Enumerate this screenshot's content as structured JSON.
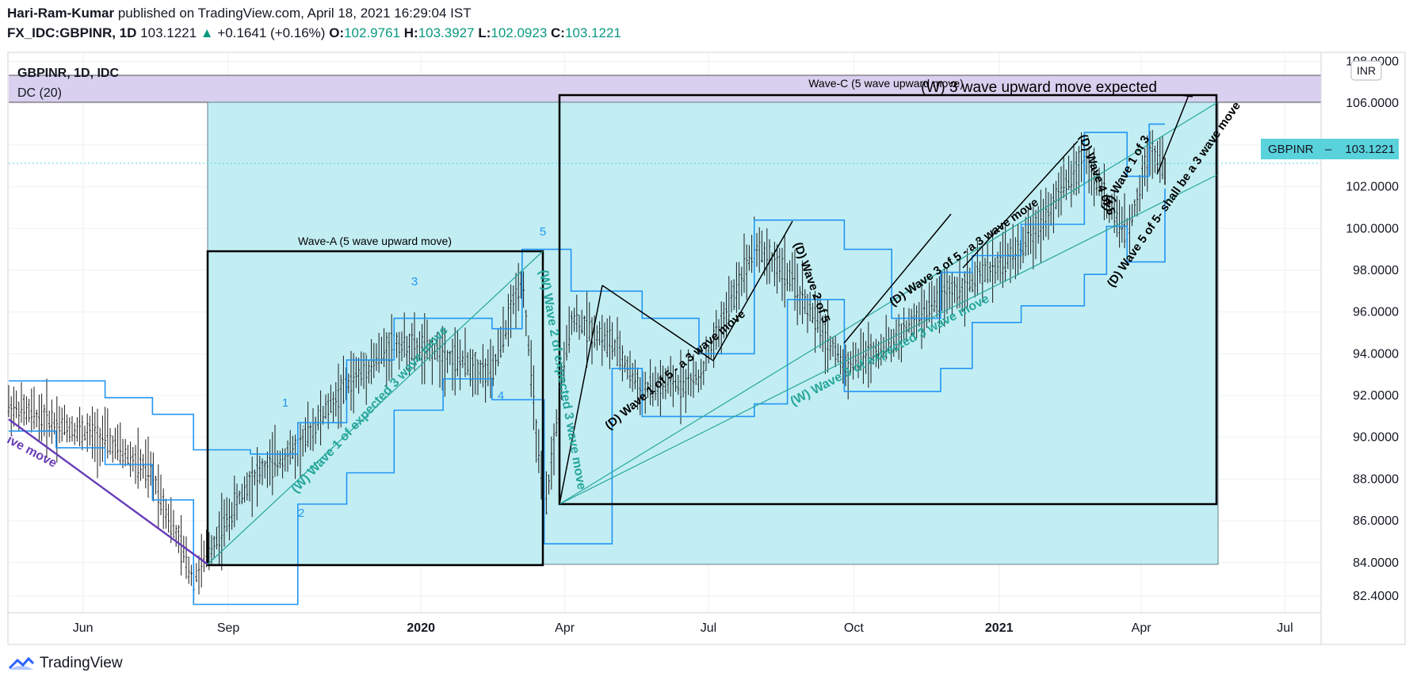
{
  "header": {
    "author": "Hari-Ram-Kumar",
    "published_text": "published on TradingView.com, April 18, 2021 16:29:04 IST",
    "symbol": "FX_IDC:GBPINR, 1D",
    "last_price": "103.1221",
    "change_arrow": "▲",
    "change": "+0.1641 (+0.16%)",
    "o_label": "O:",
    "o_value": "102.9761",
    "h_label": "H:",
    "h_value": "103.3927",
    "l_label": "L:",
    "l_value": "102.0923",
    "c_label": "C:",
    "c_value": "103.1221"
  },
  "legend": {
    "series": "GBPINR, 1D, IDC",
    "indicator": "DC (20)"
  },
  "currency": "INR",
  "price_tag": {
    "symbol": "GBPINR",
    "value": "103.1221"
  },
  "footer": {
    "brand": "TradingView"
  },
  "colors": {
    "box_fill": "#c2eef3",
    "channel": "#2196f3",
    "dc_band": "#d8d0ee",
    "trend_teal": "#26a69a",
    "trend_purple": "#673ab7",
    "tag": "#5ad2dc"
  },
  "annotations": [
    {
      "key": "wave_a",
      "text": "Wave-A (5 wave upward move)"
    },
    {
      "key": "wave_c",
      "text": "Wave-C (5 wave upward move)"
    },
    {
      "key": "w_expected",
      "text": "(W) 3 wave upward move expected"
    },
    {
      "key": "n1",
      "text": "1"
    },
    {
      "key": "n2",
      "text": "2"
    },
    {
      "key": "n3",
      "text": "3"
    },
    {
      "key": "n4",
      "text": "4"
    },
    {
      "key": "n5",
      "text": "5"
    },
    {
      "key": "w1",
      "text": "(W) Wave 1 of expected 3 wave move"
    },
    {
      "key": "w2",
      "text": "(W) Wave 2 of expected 3 wave move"
    },
    {
      "key": "w3",
      "text": "(W) Wave 3 of expected 3 wave move"
    },
    {
      "key": "d1",
      "text": "(D) Wave 1 of 5 - a 3 wave move"
    },
    {
      "key": "d2",
      "text": "(D) Wave 2 of 5"
    },
    {
      "key": "d3",
      "text": "(D) Wave 3 of 5 - a 3 wave move"
    },
    {
      "key": "d4",
      "text": "(D) Wave 4 of 5"
    },
    {
      "key": "d5",
      "text": "(D) Wave 5 of 5- shall be a 3 wave move"
    },
    {
      "key": "h1",
      "text": "(H) Wave 1 of 3"
    },
    {
      "key": "ive",
      "text": "ive move"
    }
  ],
  "chart_data": {
    "type": "line",
    "title": "GBPINR, 1D, IDC",
    "ylabel": "INR",
    "ylim": [
      81.6,
      108.4
    ],
    "y_ticks": [
      "108.0000",
      "106.0000",
      "104.0000",
      "102.0000",
      "100.0000",
      "98.0000",
      "96.0000",
      "94.0000",
      "92.0000",
      "90.0000",
      "88.0000",
      "86.0000",
      "84.0000",
      "82.4000"
    ],
    "x_ticks": [
      "Jun",
      "Sep",
      "2020",
      "Apr",
      "Jul",
      "Oct",
      "2021",
      "Apr",
      "Jul"
    ],
    "x": [
      "2019-04-15",
      "2019-05-15",
      "2019-06-15",
      "2019-07-15",
      "2019-08-10",
      "2019-09-15",
      "2019-10-15",
      "2019-11-15",
      "2019-12-15",
      "2020-01-15",
      "2020-02-15",
      "2020-03-05",
      "2020-03-19",
      "2020-04-05",
      "2020-05-01",
      "2020-05-20",
      "2020-06-25",
      "2020-07-30",
      "2020-08-20",
      "2020-09-25",
      "2020-10-25",
      "2020-11-25",
      "2020-12-15",
      "2021-01-15",
      "2021-02-24",
      "2021-03-10",
      "2021-03-23",
      "2021-04-06",
      "2021-04-16"
    ],
    "series": [
      {
        "name": "GBPINR",
        "values": [
          91.5,
          90.7,
          89.9,
          88.2,
          83.2,
          88.0,
          89.5,
          92.5,
          94.5,
          94.0,
          93.0,
          97.8,
          86.1,
          95.8,
          94.5,
          92.2,
          92.8,
          99.2,
          97.8,
          93.4,
          94.5,
          96.7,
          97.5,
          99.0,
          103.4,
          101.3,
          99.6,
          103.8,
          103.12
        ]
      }
    ],
    "ohlc_last": {
      "open": 102.9761,
      "high": 103.3927,
      "low": 102.0923,
      "close": 103.1221
    },
    "dc_period": 20,
    "grid": true
  }
}
